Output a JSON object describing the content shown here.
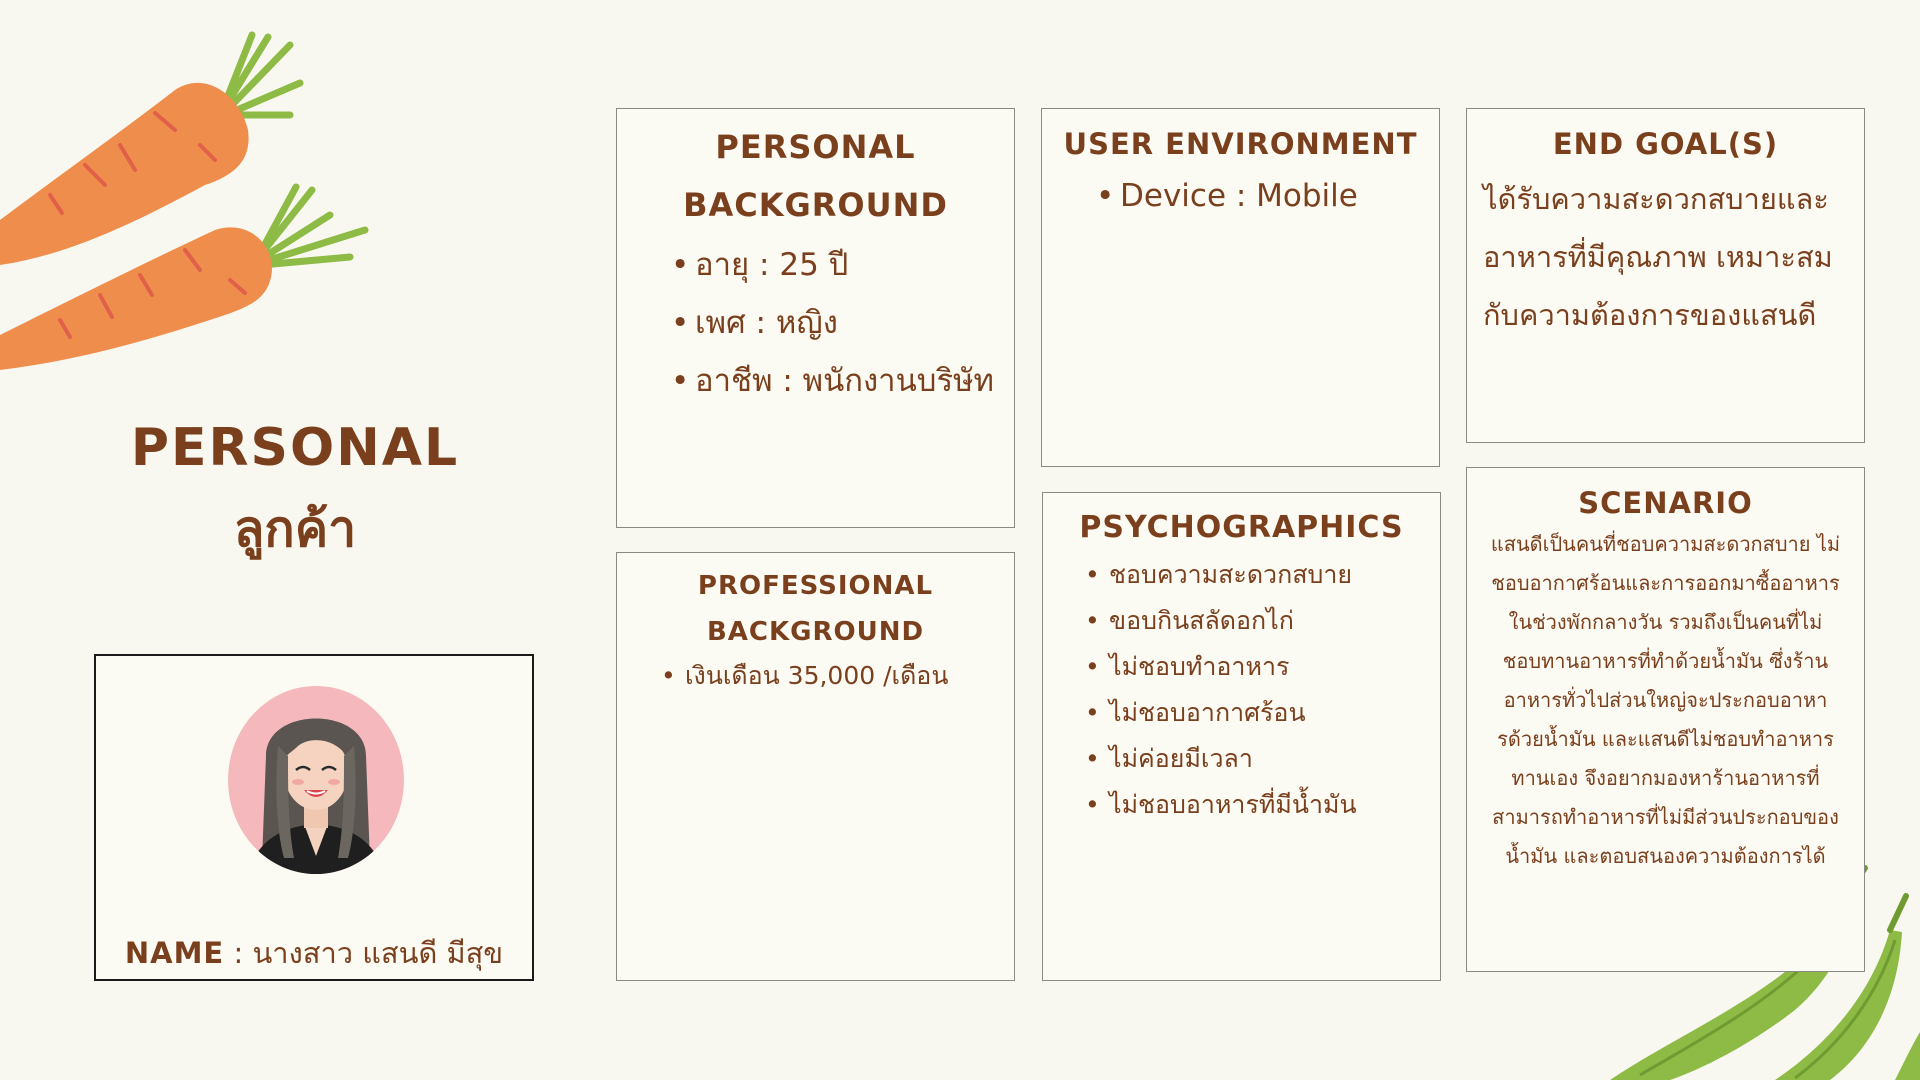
{
  "title": {
    "line1": "PERSONAL",
    "line2": "ลูกค้า"
  },
  "profile": {
    "name_label": "NAME",
    "separator": " : ",
    "name_value": "นางสาว แสนดี มีสุข"
  },
  "personal_background": {
    "heading_line1": "PERSONAL",
    "heading_line2": "BACKGROUND",
    "items": [
      "อายุ : 25 ปี",
      "เพศ : หญิง",
      "อาชีพ : พนักงานบริษัท"
    ]
  },
  "user_environment": {
    "heading": "USER ENVIRONMENT",
    "items": [
      "Device : Mobile"
    ]
  },
  "end_goals": {
    "heading": "END GOAL(S)",
    "lines": [
      "ได้รับความสะดวกสบายและ",
      "อาหารที่มีคุณภาพ เหมาะสม",
      "กับความต้องการของแสนดี"
    ]
  },
  "professional_background": {
    "heading_line1": "PROFESSIONAL",
    "heading_line2": "BACKGROUND",
    "items": [
      "เงินเดือน 35,000 /เดือน"
    ]
  },
  "psychographics": {
    "heading": "PSYCHOGRAPHICS",
    "items": [
      "ชอบความสะดวกสบาย",
      "ขอบกินสลัดอกไก่",
      "ไม่ชอบทำอาหาร",
      "ไม่ชอบอากาศร้อน",
      "ไม่ค่อยมีเวลา",
      "ไม่ชอบอาหารที่มีน้ำมัน"
    ]
  },
  "scenario": {
    "heading": "SCENARIO",
    "lines": [
      "แสนดีเป็นคนที่ชอบความสะดวกสบาย ไม่",
      "ชอบอากาศร้อนและการออกมาซื้ออาหาร",
      "ในช่วงพักกลางวัน รวมถึงเป็นคนที่ไม่",
      "ชอบทานอาหารที่ทำด้วยน้ำมัน ซึ่งร้าน",
      "อาหารทั่วไปส่วนใหญ่จะประกอบอาหา",
      "รด้วยน้ำมัน และแสนดีไม่ชอบทำอาหาร",
      "ทานเอง จึงอยากมองหาร้านอาหารที่",
      "สามารถทำอาหารที่ไม่มีส่วนประกอบของ",
      "น้ำมัน และตอบสนองความต้องการได้"
    ]
  },
  "colors": {
    "background": "#f9f8f0",
    "text": "#7a3f1c",
    "carrot": "#ef8e4c",
    "leaf": "#8dbb45",
    "avatar_bg": "#f5b8bd"
  },
  "icons": [
    "carrot-illustration",
    "pea-pod-illustration",
    "woman-avatar"
  ]
}
